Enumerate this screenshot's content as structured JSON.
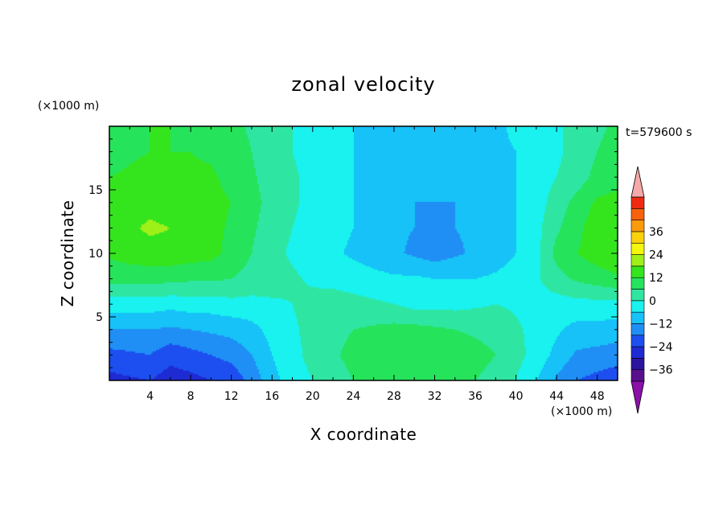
{
  "chart_data": {
    "type": "heatmap",
    "title": "zonal velocity",
    "xlabel": "X coordinate",
    "ylabel": "Z coordinate",
    "x_units": "(×1000 m)",
    "z_units": "(×1000 m)",
    "time_label": "t=579600 s",
    "xlim": [
      0,
      50
    ],
    "ylim": [
      0,
      20
    ],
    "x_ticks": [
      4,
      8,
      12,
      16,
      20,
      24,
      28,
      32,
      36,
      40,
      44,
      48
    ],
    "y_ticks": [
      5,
      10,
      15
    ],
    "colorbar": {
      "levels": [
        -42,
        -36,
        -30,
        -24,
        -18,
        -12,
        -6,
        0,
        6,
        12,
        18,
        24,
        30,
        36,
        42
      ],
      "tick_labels": [
        36,
        24,
        12,
        0,
        -12,
        -24,
        -36
      ],
      "colors": [
        "#5a0f8c",
        "#2c14a0",
        "#1e2ad2",
        "#1d4ff0",
        "#1f8ff5",
        "#16c2f7",
        "#19f2ee",
        "#2ee6a2",
        "#26e35c",
        "#34e51e",
        "#9ef018",
        "#f4f70d",
        "#fbd10c",
        "#fb9b0c",
        "#f7610c",
        "#ee2a12"
      ],
      "under_color": "#8b10a8",
      "over_color": "#f5a9a9"
    },
    "field_grid": {
      "x": [
        0,
        2,
        4,
        6,
        8,
        10,
        12,
        14,
        16,
        18,
        20,
        22,
        24,
        26,
        28,
        30,
        32,
        34,
        36,
        38,
        40,
        42,
        44,
        46,
        48,
        50
      ],
      "z": [
        0,
        2,
        4,
        6,
        8,
        10,
        12,
        14,
        16,
        18,
        20
      ],
      "values": [
        [
          -26,
          -25,
          -24,
          -27,
          -26,
          -24,
          -22,
          -16,
          -8,
          -3,
          0,
          3,
          6,
          8,
          10,
          10,
          9,
          8,
          6,
          4,
          0,
          -6,
          -13,
          -18,
          -20,
          -22
        ],
        [
          -20,
          -19,
          -18,
          -22,
          -20,
          -18,
          -16,
          -12,
          -6,
          -2,
          2,
          5,
          8,
          10,
          12,
          12,
          11,
          10,
          8,
          6,
          2,
          -2,
          -8,
          -13,
          -14,
          -15
        ],
        [
          -12,
          -12,
          -12,
          -13,
          -12,
          -11,
          -10,
          -8,
          -4,
          -1,
          2,
          4,
          6,
          7,
          8,
          8,
          7,
          6,
          5,
          4,
          1,
          -2,
          -5,
          -8,
          -8,
          -9
        ],
        [
          -3,
          -3,
          -3,
          -4,
          -3,
          -3,
          -2,
          -2,
          -1,
          0,
          2,
          3,
          2,
          1,
          0,
          -2,
          -2,
          -2,
          -1,
          0,
          -1,
          -2,
          -3,
          -2,
          -2,
          -2
        ],
        [
          8,
          8,
          8,
          8,
          7,
          7,
          6,
          4,
          3,
          1,
          -1,
          -2,
          -3,
          -4,
          -5,
          -5,
          -6,
          -6,
          -6,
          -5,
          -3,
          -1,
          4,
          7,
          9,
          11
        ],
        [
          13,
          15,
          16,
          16,
          15,
          14,
          10,
          6,
          2,
          -1,
          -3,
          -5,
          -7,
          -9,
          -11,
          -13,
          -15,
          -13,
          -11,
          -9,
          -6,
          -2,
          8,
          12,
          15,
          17
        ],
        [
          15,
          17,
          19,
          18,
          17,
          14,
          11,
          7,
          3,
          0,
          -2,
          -4,
          -6,
          -9,
          -11,
          -12,
          -13,
          -12,
          -11,
          -9,
          -6,
          -2,
          5,
          10,
          16,
          18
        ],
        [
          15,
          16,
          16,
          15,
          15,
          14,
          12,
          8,
          4,
          1,
          -2,
          -4,
          -6,
          -9,
          -11,
          -12,
          -12,
          -12,
          -11,
          -9,
          -6,
          -3,
          3,
          8,
          13,
          14
        ],
        [
          12,
          13,
          14,
          14,
          13,
          13,
          10,
          7,
          3,
          1,
          -2,
          -4,
          -6,
          -8,
          -10,
          -11,
          -11,
          -10,
          -9,
          -8,
          -6,
          -3,
          0,
          3,
          8,
          10
        ],
        [
          9,
          11,
          12,
          12,
          12,
          11,
          9,
          6,
          2,
          0,
          -2,
          -4,
          -6,
          -7,
          -8,
          -9,
          -9,
          -8,
          -8,
          -7,
          -6,
          -4,
          -1,
          2,
          6,
          8
        ],
        [
          8,
          10,
          12,
          12,
          11,
          10,
          8,
          5,
          2,
          0,
          -2,
          -4,
          -6,
          -7,
          -8,
          -9,
          -9,
          -8,
          -7,
          -7,
          -5,
          -4,
          -1,
          2,
          5,
          7
        ]
      ]
    }
  }
}
